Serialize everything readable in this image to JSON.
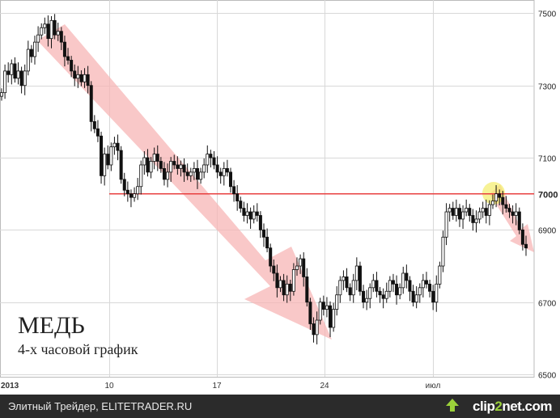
{
  "chart_data": {
    "type": "candlestick",
    "title": "МЕДЬ",
    "subtitle": "4-х часовой график",
    "x_tick_labels": [
      "2013",
      "10",
      "17",
      "24",
      "июл"
    ],
    "y_tick_labels": [
      "7500",
      "7300",
      "7100",
      "7000",
      "6900",
      "6700",
      "6500"
    ],
    "ylim": [
      6500,
      7530
    ],
    "y_ticks": [
      7500,
      7300,
      7100,
      7000,
      6900,
      6700,
      6500
    ],
    "horizontal_line": 7000,
    "grid": true,
    "close_series": [
      7280,
      7340,
      7330,
      7360,
      7320,
      7340,
      7300,
      7340,
      7400,
      7380,
      7420,
      7440,
      7460,
      7470,
      7430,
      7480,
      7440,
      7450,
      7420,
      7380,
      7370,
      7340,
      7320,
      7330,
      7310,
      7330,
      7300,
      7200,
      7180,
      7160,
      7050,
      7110,
      7080,
      7130,
      7140,
      7120,
      7040,
      7010,
      7000,
      6990,
      7000,
      7020,
      7080,
      7100,
      7060,
      7090,
      7110,
      7090,
      7070,
      7040,
      7060,
      7090,
      7080,
      7070,
      7080,
      7060,
      7050,
      7060,
      7070,
      7040,
      7060,
      7080,
      7110,
      7100,
      7080,
      7060,
      7050,
      7070,
      7060,
      7020,
      7000,
      6980,
      6960,
      6940,
      6950,
      6930,
      6950,
      6940,
      6900,
      6880,
      6850,
      6800,
      6780,
      6740,
      6760,
      6720,
      6750,
      6730,
      6790,
      6800,
      6820,
      6770,
      6700,
      6640,
      6610,
      6650,
      6700,
      6680,
      6690,
      6630,
      6680,
      6720,
      6760,
      6770,
      6740,
      6720,
      6760,
      6800,
      6730,
      6700,
      6710,
      6740,
      6760,
      6730,
      6720,
      6710,
      6730,
      6760,
      6750,
      6720,
      6740,
      6780,
      6760,
      6730,
      6700,
      6720,
      6740,
      6760,
      6750,
      6730,
      6700,
      6750,
      6800,
      6880,
      6950,
      6960,
      6940,
      6960,
      6930,
      6950,
      6960,
      6940,
      6920,
      6930,
      6950,
      6960,
      6940,
      6970,
      6980,
      7000,
      6990,
      6970,
      6960,
      6950,
      6940,
      6950,
      6900,
      6860,
      6850
    ]
  },
  "footer": {
    "source": "Элитный Трейдер, ELITETRADER.RU",
    "brand_a": "clip",
    "brand_b": "2",
    "brand_c": "net",
    "brand_d": ".com"
  },
  "colors": {
    "background": "#ffffff",
    "grid": "#d8d8d8",
    "candle": "#111111",
    "level_line": "#e84040",
    "arrow_fill": "#f7b6b6",
    "highlight": "#f4ec6a",
    "footer_bg": "#2b2b2b"
  }
}
